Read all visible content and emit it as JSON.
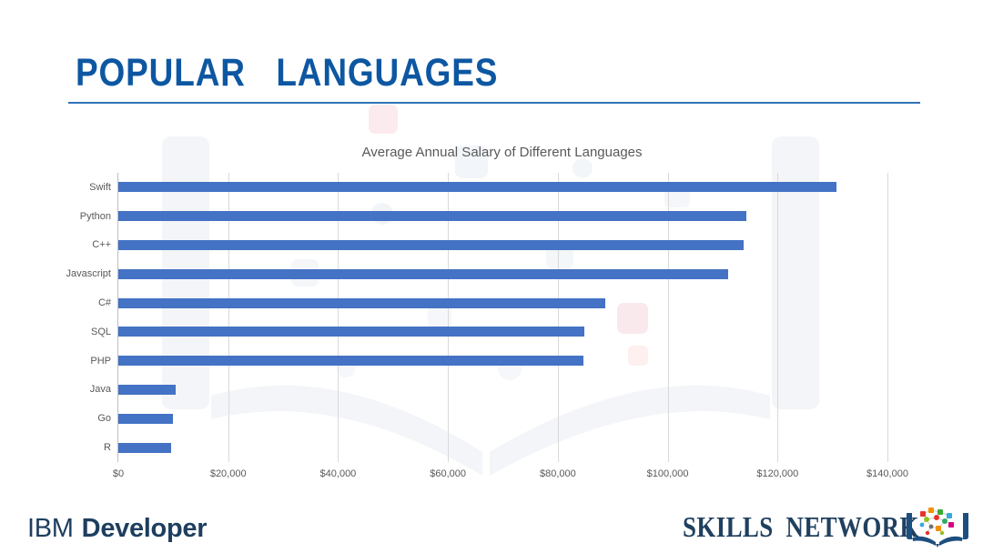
{
  "header": {
    "title": "POPULAR LANGUAGES"
  },
  "chart_data": {
    "type": "bar",
    "orientation": "horizontal",
    "title": "Average Annual Salary of Different Languages",
    "categories": [
      "Swift",
      "Python",
      "C++",
      "Javascript",
      "C#",
      "SQL",
      "PHP",
      "Java",
      "Go",
      "R"
    ],
    "values": [
      130800,
      114400,
      113900,
      111000,
      88700,
      84800,
      84700,
      10400,
      9900,
      9600
    ],
    "xlim": [
      0,
      140000
    ],
    "x_tick_labels": [
      "$0",
      "$20,000",
      "$40,000",
      "$60,000",
      "$80,000",
      "$100,000",
      "$120,000",
      "$140,000"
    ],
    "grid": true,
    "legend": "none",
    "bar_color": "#4472c4"
  },
  "footer": {
    "ibm": {
      "brand": "IBM",
      "product": "Developer"
    },
    "skills_network": {
      "label": "SKILLS NETWORK"
    }
  },
  "colors": {
    "title_blue": "#0d57a2",
    "rule_blue": "#2e73b8",
    "bar_blue": "#4472c4",
    "text_gray": "#595959",
    "axis_gray": "#bfbfbf",
    "grid_gray": "#d9d9d9",
    "navy": "#1e3e5f"
  }
}
